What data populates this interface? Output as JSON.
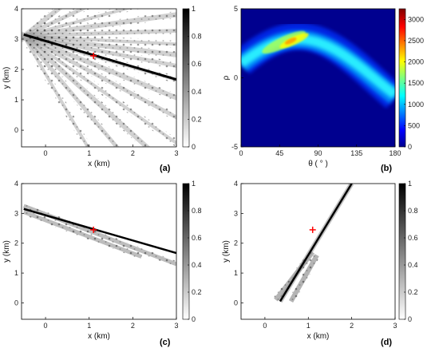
{
  "chart_data": [
    {
      "id": "a",
      "type": "heatmap",
      "panel_label": "(a)",
      "xlabel": "x (km)",
      "ylabel": "y (km)",
      "xlim": [
        -0.55,
        3
      ],
      "ylim": [
        -0.55,
        4
      ],
      "xticks": [
        "0",
        "1",
        "2",
        "3"
      ],
      "xtick_values": [
        0,
        1,
        2,
        3
      ],
      "yticks": [
        "0",
        "1",
        "2",
        "3",
        "4"
      ],
      "ytick_values": [
        0,
        1,
        2,
        3,
        4
      ],
      "colorbar": {
        "min": 0,
        "max": 1,
        "ticks": [
          "0",
          "0.2",
          "0.4",
          "0.6",
          "0.8",
          "1"
        ],
        "tick_values": [
          0,
          0.2,
          0.4,
          0.6,
          0.8,
          1
        ],
        "colormap": "gray-reversed"
      },
      "source": {
        "x": -0.5,
        "y": 3.1
      },
      "ray_fan_angles_deg": [
        -60,
        -50,
        -42,
        -35,
        -28,
        -22,
        -16,
        -11,
        -7,
        -3,
        2,
        8,
        15,
        25,
        38
      ],
      "detected_line": {
        "x": [
          -0.5,
          3
        ],
        "y": [
          3.15,
          1.67
        ]
      },
      "marker": {
        "x": 1.1,
        "y": 2.45,
        "symbol": "+",
        "color": "#ff0000"
      }
    },
    {
      "id": "b",
      "type": "heatmap",
      "panel_label": "(b)",
      "xlabel": "θ ( ° )",
      "ylabel": "ρ",
      "xlim": [
        0,
        180
      ],
      "ylim": [
        -5,
        5
      ],
      "xticks": [
        "0",
        "45",
        "90",
        "135",
        "180"
      ],
      "xtick_values": [
        0,
        45,
        90,
        135,
        180
      ],
      "yticks": [
        "-5",
        "0",
        "5"
      ],
      "ytick_values": [
        -5,
        0,
        5
      ],
      "colorbar": {
        "min": 0,
        "max": 3250,
        "ticks": [
          "0",
          "500",
          "1000",
          "1500",
          "2000",
          "2500",
          "3000"
        ],
        "tick_values": [
          0,
          500,
          1000,
          1500,
          2000,
          2500,
          3000
        ],
        "colormap": "jet"
      },
      "sinusoid_peak": {
        "theta": 67,
        "rho": 2.8
      }
    },
    {
      "id": "c",
      "type": "heatmap",
      "panel_label": "(c)",
      "xlabel": "x (km)",
      "ylabel": "y (km)",
      "xlim": [
        -0.55,
        3
      ],
      "ylim": [
        -0.55,
        4
      ],
      "xticks": [
        "0",
        "1",
        "2",
        "3"
      ],
      "xtick_values": [
        0,
        1,
        2,
        3
      ],
      "yticks": [
        "0",
        "1",
        "2",
        "3",
        "4"
      ],
      "ytick_values": [
        0,
        1,
        2,
        3,
        4
      ],
      "colorbar": {
        "min": 0,
        "max": 1,
        "ticks": [
          "0",
          "0.2",
          "0.4",
          "0.6",
          "0.8",
          "1"
        ],
        "tick_values": [
          0,
          0.2,
          0.4,
          0.6,
          0.8,
          1
        ],
        "colormap": "gray-reversed"
      },
      "detected_line": {
        "x": [
          -0.5,
          3
        ],
        "y": [
          3.15,
          1.67
        ]
      },
      "band_lines": [
        {
          "x": [
            -0.5,
            3
          ],
          "y": [
            3.25,
            1.3
          ]
        },
        {
          "x": [
            -0.5,
            2.2
          ],
          "y": [
            3.05,
            1.55
          ]
        }
      ],
      "marker": {
        "x": 1.1,
        "y": 2.45,
        "symbol": "+",
        "color": "#ff0000"
      }
    },
    {
      "id": "d",
      "type": "heatmap",
      "panel_label": "(d)",
      "xlabel": "x (km)",
      "ylabel": "y (km)",
      "xlim": [
        -0.55,
        3
      ],
      "ylim": [
        -0.55,
        4
      ],
      "xticks": [
        "0",
        "1",
        "2",
        "3"
      ],
      "xtick_values": [
        0,
        1,
        2,
        3
      ],
      "yticks": [
        "0",
        "1",
        "2",
        "3",
        "4"
      ],
      "ytick_values": [
        0,
        1,
        2,
        3,
        4
      ],
      "colorbar": {
        "min": 0,
        "max": 1,
        "ticks": [
          "0",
          "0.2",
          "0.4",
          "0.6",
          "0.8",
          "1"
        ],
        "tick_values": [
          0,
          0.2,
          0.4,
          0.6,
          0.8,
          1
        ],
        "colormap": "gray-reversed"
      },
      "detected_line": {
        "x": [
          0.35,
          2
        ],
        "y": [
          0.05,
          4
        ]
      },
      "band_lines": [
        {
          "x": [
            0.25,
            1.1
          ],
          "y": [
            0.1,
            1.7
          ]
        },
        {
          "x": [
            0.6,
            1.2
          ],
          "y": [
            0.05,
            1.6
          ]
        }
      ],
      "marker": {
        "x": 1.1,
        "y": 2.45,
        "symbol": "+",
        "color": "#ff0000"
      }
    }
  ]
}
